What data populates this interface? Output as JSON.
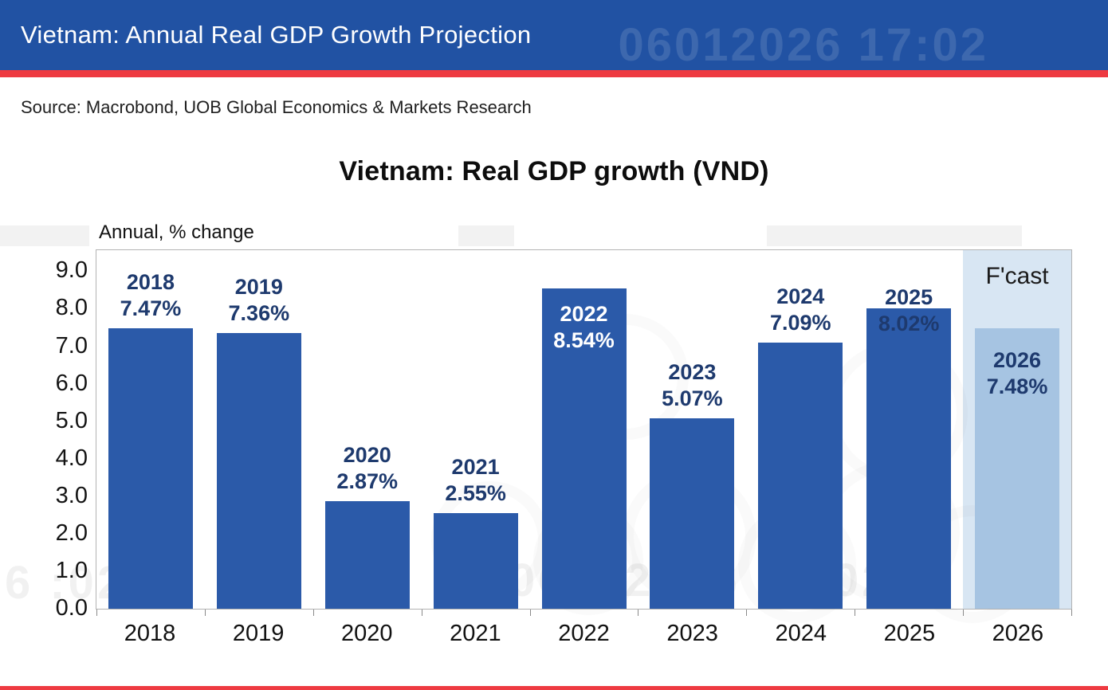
{
  "header": {
    "title": "Vietnam: Annual Real GDP Growth Projection",
    "watermark": "06012026 17:02"
  },
  "source_line": "Source: Macrobond, UOB Global Economics & Markets Research",
  "chart_data": {
    "type": "bar",
    "title": "Vietnam: Real GDP growth (VND)",
    "ylabel": "Annual, % change",
    "xlabel": "",
    "categories": [
      "2018",
      "2019",
      "2020",
      "2021",
      "2022",
      "2023",
      "2024",
      "2025",
      "2026"
    ],
    "values": [
      7.47,
      7.36,
      2.87,
      2.55,
      8.54,
      5.07,
      7.09,
      8.02,
      7.48
    ],
    "value_labels": [
      "7.47%",
      "7.36%",
      "2.87%",
      "2.55%",
      "8.54%",
      "5.07%",
      "7.09%",
      "8.02%",
      "7.48%"
    ],
    "label_styles": [
      "above",
      "above",
      "above",
      "above",
      "inside-white",
      "above",
      "above",
      "overlap",
      "inside"
    ],
    "ytick_labels": [
      "0.0",
      "1.0",
      "2.0",
      "3.0",
      "4.0",
      "5.0",
      "6.0",
      "7.0",
      "8.0",
      "9.0"
    ],
    "ylim": [
      0,
      9.56
    ],
    "grid": false,
    "legend_forecast_label": "F'cast",
    "forecast_index": 8,
    "colors": {
      "bar": "#2b5aa9",
      "forecast_bar": "#a6c4e2",
      "forecast_bg": "#d8e6f3",
      "label": "#1e3a6e",
      "label_inside": "#ffffff",
      "header_blue": "#2152a3",
      "stripe_red": "#ee3a41"
    }
  },
  "watermarks": {
    "plot_text": "06012026 17:02",
    "plot_text_left": "6  :02"
  }
}
